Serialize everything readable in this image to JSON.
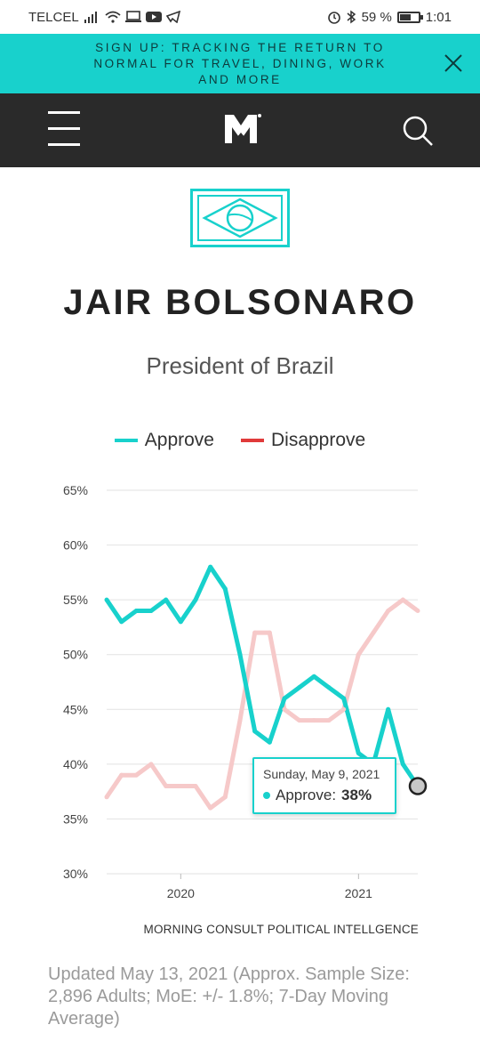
{
  "status_bar": {
    "carrier": "TELCEL",
    "battery": "59 %",
    "battery_level": 0.59,
    "time": "1:01"
  },
  "banner": {
    "text": "SIGN UP: TRACKING THE RETURN TO NORMAL FOR TRAVEL, DINING, WORK AND MORE"
  },
  "nav": {
    "menu_icon": "hamburger-menu-icon",
    "logo_icon": "morning-consult-logo",
    "search_icon": "search-icon"
  },
  "profile": {
    "name": "JAIR BOLSONARO",
    "role": "President of Brazil",
    "flag_icon": "brazil-flag-icon"
  },
  "legend": {
    "approve": "Approve",
    "disapprove": "Disapprove"
  },
  "colors": {
    "approve": "#18d1cc",
    "disapprove": "#e03a3a",
    "disapprove_muted": "#f6c9c9",
    "banner_bg": "#18d1cc",
    "nav_bg": "#2a2a2a"
  },
  "chart_data": {
    "type": "line",
    "ylim": [
      30,
      65
    ],
    "y_ticks": [
      "65%",
      "60%",
      "55%",
      "50%",
      "45%",
      "40%",
      "35%",
      "30%"
    ],
    "x_ticks": [
      "2020",
      "2021"
    ],
    "x_range": [
      "2019-08",
      "2021-05"
    ],
    "grid": true,
    "legend_position": "top",
    "series": [
      {
        "name": "Approve",
        "x": [
          "2019-08",
          "2019-09",
          "2019-10",
          "2019-11",
          "2019-12",
          "2020-01",
          "2020-02",
          "2020-03",
          "2020-04",
          "2020-05",
          "2020-06",
          "2020-07",
          "2020-08",
          "2020-09",
          "2020-10",
          "2020-11",
          "2020-12",
          "2021-01",
          "2021-02",
          "2021-03",
          "2021-04",
          "2021-05"
        ],
        "values": [
          55,
          53,
          54,
          54,
          55,
          53,
          55,
          58,
          56,
          50,
          43,
          42,
          46,
          47,
          48,
          47,
          46,
          41,
          40,
          45,
          40,
          38
        ]
      },
      {
        "name": "Disapprove",
        "x": [
          "2019-08",
          "2019-09",
          "2019-10",
          "2019-11",
          "2019-12",
          "2020-01",
          "2020-02",
          "2020-03",
          "2020-04",
          "2020-05",
          "2020-06",
          "2020-07",
          "2020-08",
          "2020-09",
          "2020-10",
          "2020-11",
          "2020-12",
          "2021-01",
          "2021-02",
          "2021-03",
          "2021-04",
          "2021-05"
        ],
        "values": [
          37,
          39,
          39,
          40,
          38,
          38,
          38,
          36,
          37,
          44,
          52,
          52,
          45,
          44,
          44,
          44,
          45,
          50,
          52,
          54,
          55,
          54
        ]
      }
    ],
    "tooltip": {
      "date": "Sunday, May 9, 2021",
      "label": "Approve:",
      "value": "38%"
    }
  },
  "source": "MORNING CONSULT POLITICAL INTELLGENCE",
  "updated": "Updated May 13, 2021 (Approx. Sample Size: 2,896 Adults; MoE: +/- 1.8%; 7-Day Moving Average)"
}
